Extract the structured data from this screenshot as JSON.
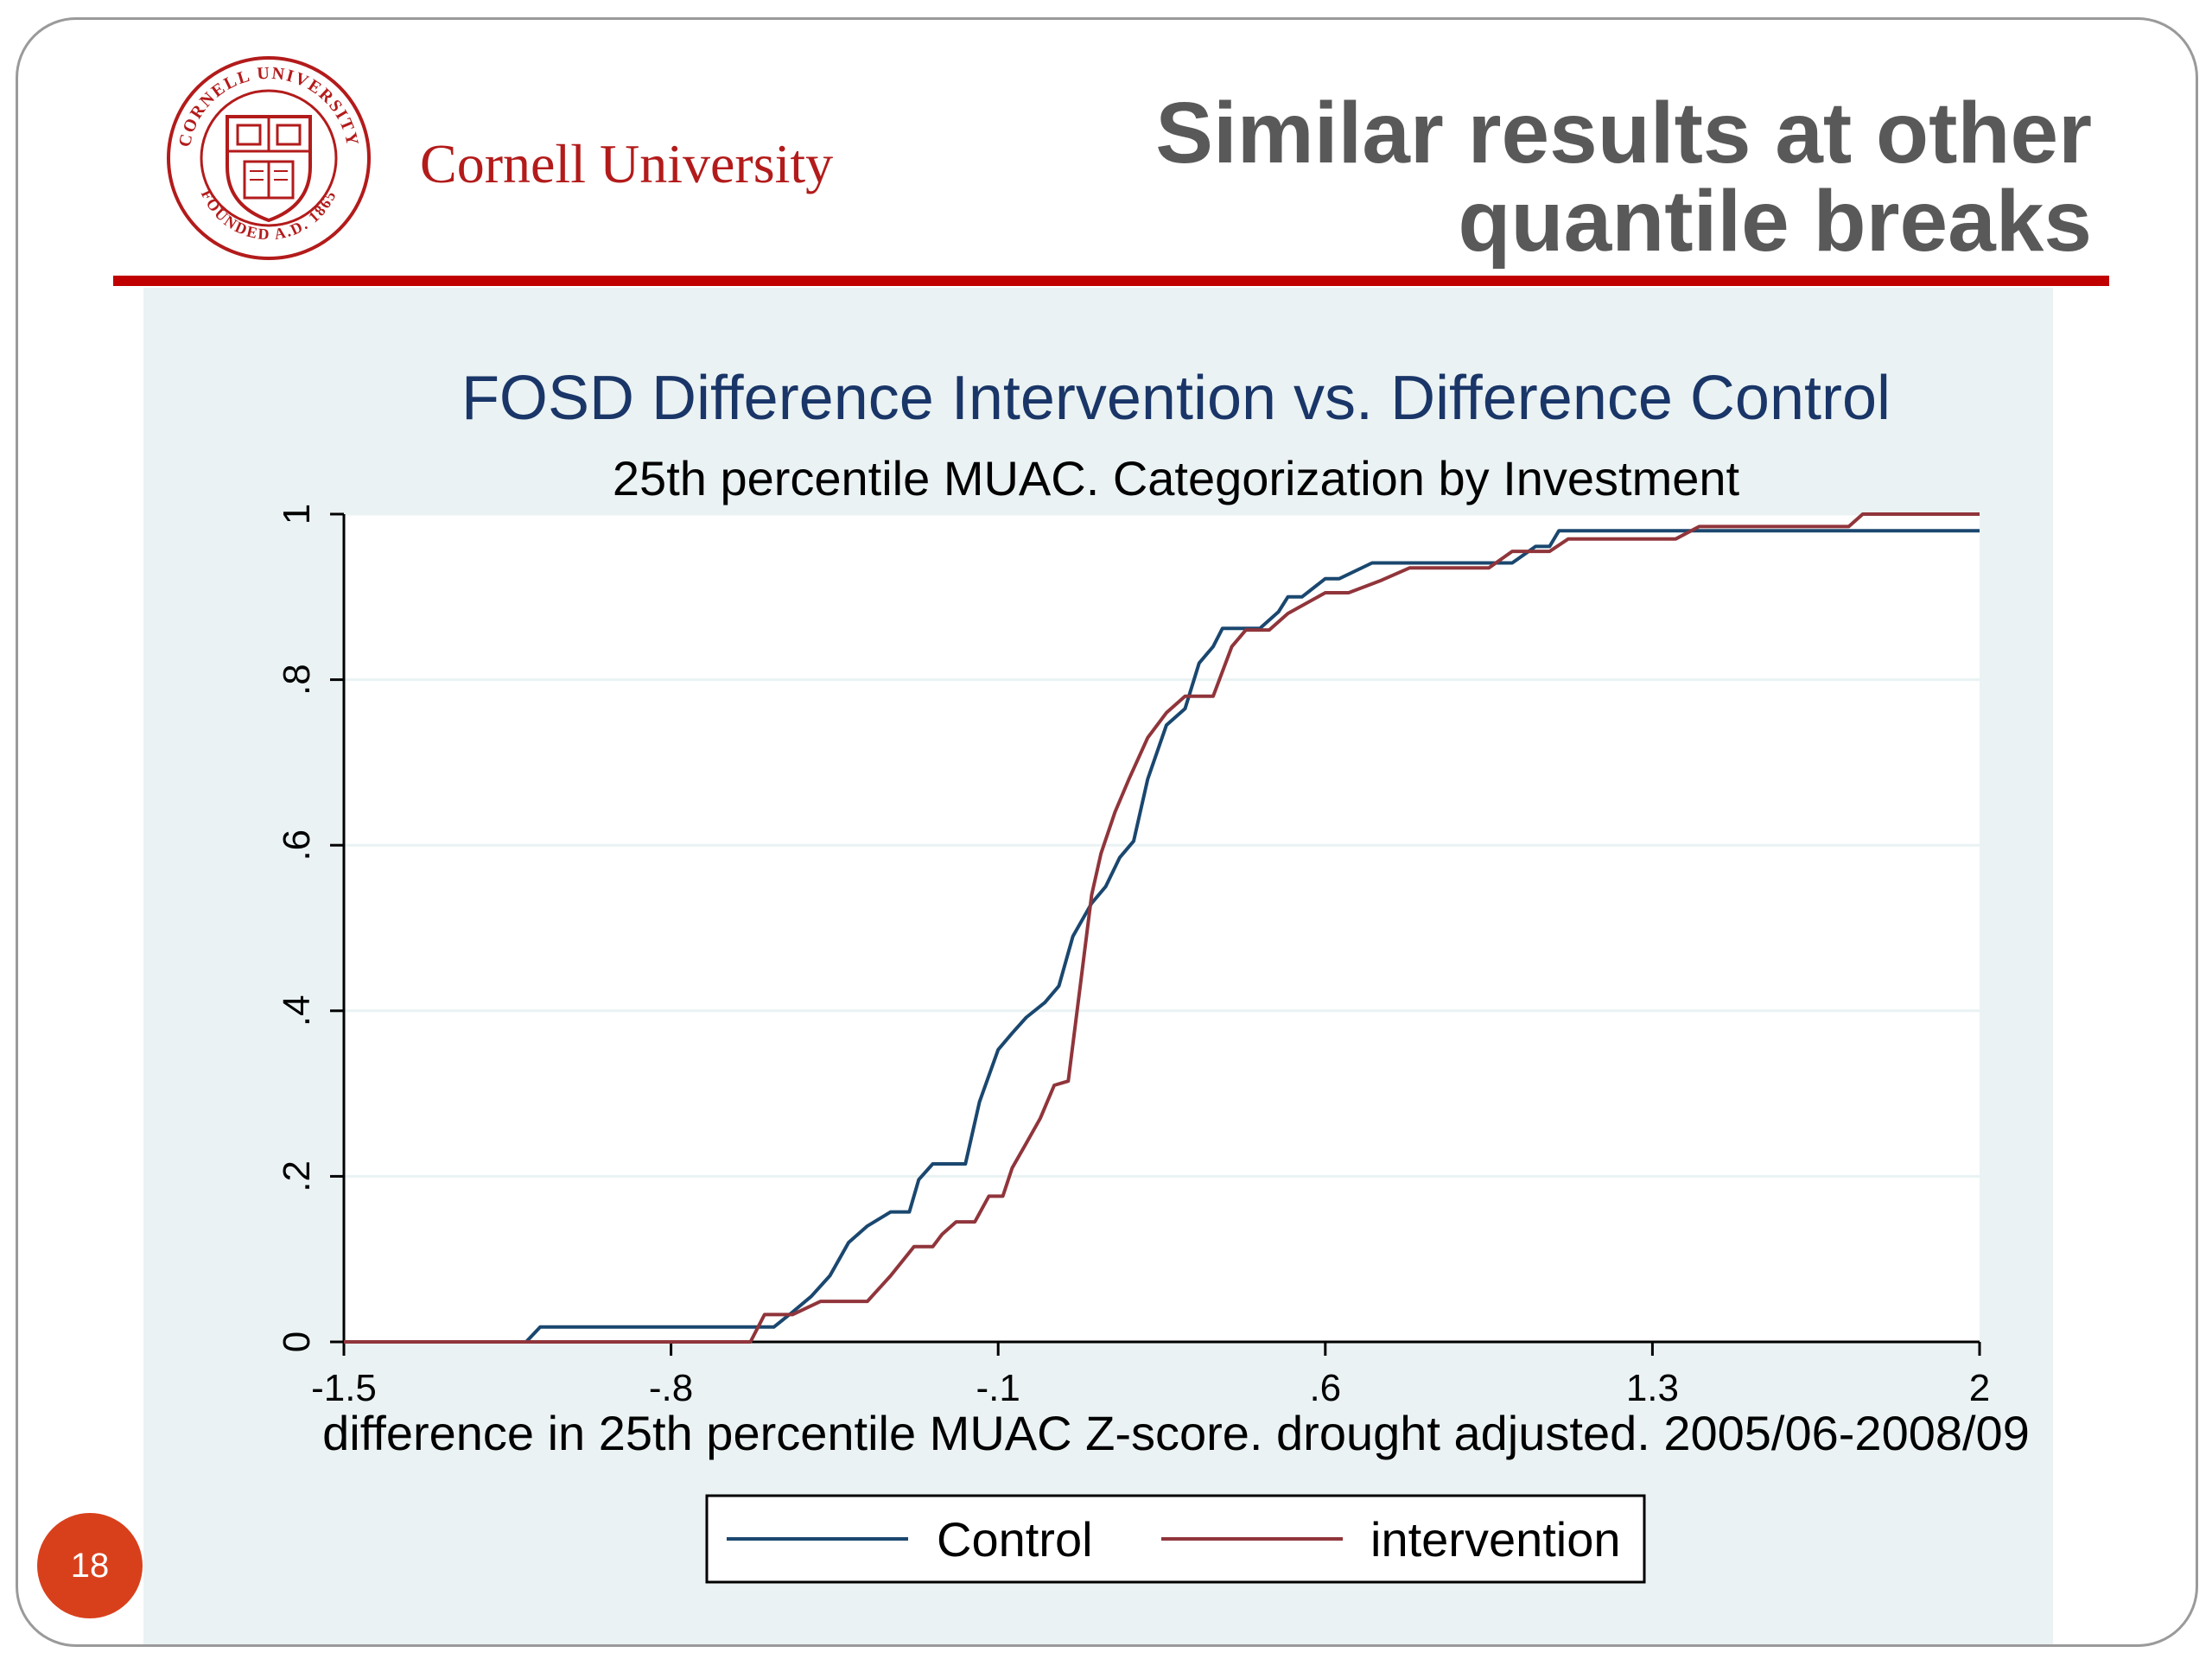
{
  "slide": {
    "title_line1": "Similar results at other",
    "title_line2": "quantile breaks",
    "university": "Cornell University",
    "logo_text_top": "CORNELL UNIVERSITY",
    "logo_text_bottom": "FOUNDED A.D. 1865",
    "page_number": "18",
    "colors": {
      "title": "#595959",
      "rule": "#c00000",
      "brand": "#b31b1b",
      "page_badge": "#d8401c"
    }
  },
  "chart_data": {
    "type": "line",
    "title": "FOSD Difference Intervention vs. Difference Control",
    "subtitle": "25th percentile MUAC. Categorization by Investment",
    "xlabel": "difference in 25th percentile MUAC Z-score. drought adjusted. 2005/06-2008/09",
    "ylabel": "",
    "xlim": [
      -1.5,
      2
    ],
    "ylim": [
      0,
      1
    ],
    "xticks": [
      -1.5,
      -0.8,
      -0.1,
      0.6,
      1.3,
      2
    ],
    "xtick_labels": [
      "-1.5",
      "-.8",
      "-.1",
      ".6",
      "1.3",
      "2"
    ],
    "yticks": [
      0,
      0.2,
      0.4,
      0.6,
      0.8,
      1
    ],
    "ytick_labels": [
      "0",
      ".2",
      ".4",
      ".6",
      ".8",
      "1"
    ],
    "grid": true,
    "legend_position": "bottom",
    "series": [
      {
        "name": "Control",
        "color": "#1a476f",
        "x": [
          -1.5,
          -1.11,
          -1.08,
          -0.6,
          -0.58,
          -0.54,
          -0.5,
          -0.46,
          -0.42,
          -0.38,
          -0.33,
          -0.29,
          -0.27,
          -0.24,
          -0.17,
          -0.14,
          -0.1,
          -0.07,
          -0.04,
          0.0,
          0.03,
          0.06,
          0.1,
          0.13,
          0.16,
          0.19,
          0.22,
          0.26,
          0.3,
          0.33,
          0.36,
          0.38,
          0.42,
          0.46,
          0.5,
          0.52,
          0.55,
          0.6,
          0.63,
          0.7,
          0.72,
          0.78,
          0.83,
          1.0,
          1.05,
          1.08,
          1.1,
          1.15,
          2.0
        ],
        "y": [
          0,
          0,
          0.018,
          0.018,
          0.018,
          0.036,
          0.055,
          0.08,
          0.12,
          0.14,
          0.157,
          0.157,
          0.196,
          0.215,
          0.215,
          0.29,
          0.353,
          0.373,
          0.392,
          0.41,
          0.43,
          0.49,
          0.53,
          0.55,
          0.585,
          0.605,
          0.68,
          0.745,
          0.765,
          0.82,
          0.84,
          0.862,
          0.862,
          0.862,
          0.882,
          0.9,
          0.9,
          0.922,
          0.922,
          0.941,
          0.941,
          0.941,
          0.941,
          0.941,
          0.961,
          0.961,
          0.98,
          0.98,
          0.98
        ]
      },
      {
        "name": "intervention",
        "color": "#90353b",
        "x": [
          -1.5,
          -0.63,
          -0.6,
          -0.54,
          -0.48,
          -0.38,
          -0.33,
          -0.28,
          -0.24,
          -0.22,
          -0.19,
          -0.15,
          -0.12,
          -0.09,
          -0.07,
          -0.04,
          -0.01,
          0.02,
          0.05,
          0.08,
          0.1,
          0.12,
          0.15,
          0.18,
          0.22,
          0.26,
          0.3,
          0.36,
          0.4,
          0.43,
          0.48,
          0.52,
          0.6,
          0.65,
          0.72,
          0.78,
          0.95,
          1.0,
          1.08,
          1.12,
          1.35,
          1.4,
          1.72,
          1.75,
          2.0
        ],
        "y": [
          0,
          0,
          0.033,
          0.033,
          0.049,
          0.049,
          0.08,
          0.115,
          0.115,
          0.13,
          0.145,
          0.145,
          0.176,
          0.176,
          0.21,
          0.24,
          0.27,
          0.31,
          0.315,
          0.45,
          0.54,
          0.59,
          0.64,
          0.68,
          0.73,
          0.76,
          0.78,
          0.78,
          0.84,
          0.86,
          0.86,
          0.88,
          0.905,
          0.905,
          0.92,
          0.935,
          0.935,
          0.955,
          0.955,
          0.97,
          0.97,
          0.985,
          0.985,
          1.0,
          1.0
        ]
      }
    ]
  }
}
